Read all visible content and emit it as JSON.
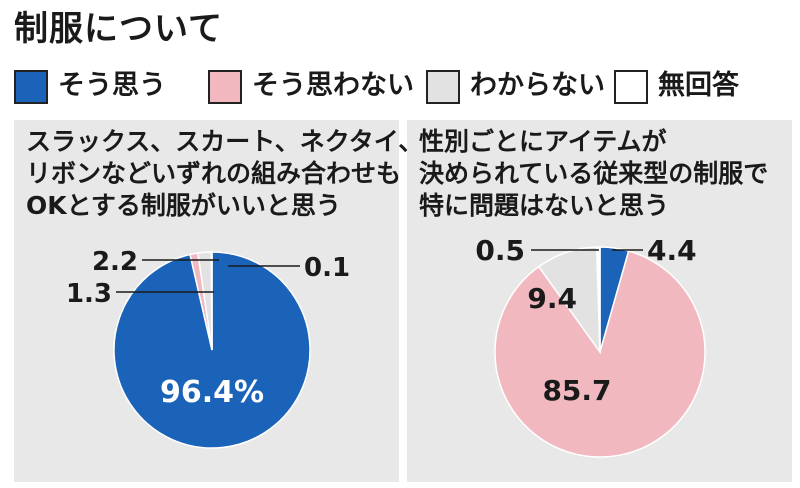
{
  "title": "制服について",
  "legend": [
    {
      "label": "そう思う",
      "color": "#1b63b8"
    },
    {
      "label": "そう思わない",
      "color": "#f1b8c0"
    },
    {
      "label": "わからない",
      "color": "#e2e2e2"
    },
    {
      "label": "無回答",
      "color": "#ffffff"
    }
  ],
  "chart_data": [
    {
      "type": "pie",
      "title_lines": [
        "スラックス、スカート、ネクタイ、",
        "リボンなどいずれの組み合わせも",
        "OKとする制服がいいと思う"
      ],
      "categories": [
        "そう思う",
        "そう思わない",
        "わからない",
        "無回答"
      ],
      "values": [
        96.4,
        1.3,
        2.2,
        0.1
      ],
      "value_labels": [
        "96.4%",
        "1.3",
        "2.2",
        "0.1"
      ],
      "colors": [
        "#1b63b8",
        "#f1b8c0",
        "#e2e2e2",
        "#ffffff"
      ]
    },
    {
      "type": "pie",
      "title_lines": [
        "性別ごとにアイテムが",
        "決められている従来型の制服で",
        "特に問題はないと思う"
      ],
      "categories": [
        "そう思う",
        "そう思わない",
        "わからない",
        "無回答"
      ],
      "values": [
        4.4,
        85.7,
        9.4,
        0.5
      ],
      "value_labels": [
        "4.4",
        "85.7",
        "9.4",
        "0.5"
      ],
      "colors": [
        "#1b63b8",
        "#f1b8c0",
        "#e2e2e2",
        "#ffffff"
      ]
    }
  ]
}
